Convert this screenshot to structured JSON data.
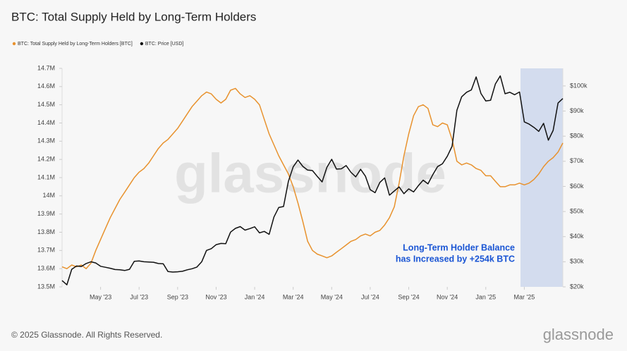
{
  "chart_data": {
    "type": "line",
    "title": "BTC: Total Supply Held by Long-Term Holders",
    "categories": [
      null,
      null,
      null,
      null,
      null,
      null,
      null,
      null,
      "May '23",
      null,
      null,
      null,
      null,
      null,
      null,
      null,
      "Jul '23",
      null,
      null,
      null,
      null,
      null,
      null,
      null,
      "Sep '23",
      null,
      null,
      null,
      null,
      null,
      null,
      null,
      "Nov '23",
      null,
      null,
      null,
      null,
      null,
      null,
      null,
      "Jan '24",
      null,
      null,
      null,
      null,
      null,
      null,
      null,
      "Mar '24",
      null,
      null,
      null,
      null,
      null,
      null,
      null,
      "May '24",
      null,
      null,
      null,
      null,
      null,
      null,
      null,
      "Jul '24",
      null,
      null,
      null,
      null,
      null,
      null,
      null,
      "Sep '24",
      null,
      null,
      null,
      null,
      null,
      null,
      null,
      "Nov '24",
      null,
      null,
      null,
      null,
      null,
      null,
      null,
      "Jan '25",
      null,
      null,
      null,
      null,
      null,
      null,
      null,
      "Mar '25",
      null,
      null,
      null,
      null,
      null,
      null,
      null,
      null
    ],
    "series": [
      {
        "name": "BTC: Total Supply Held by Long-Term Holders [BTC]",
        "color": "#e8922e",
        "axis": "y",
        "values": [
          13610000,
          13600000,
          13620000,
          13610000,
          13620000,
          13600000,
          13630000,
          13700000,
          13760000,
          13820000,
          13880000,
          13930000,
          13980000,
          14020000,
          14060000,
          14100000,
          14130000,
          14150000,
          14180000,
          14220000,
          14260000,
          14290000,
          14310000,
          14340000,
          14370000,
          14410000,
          14450000,
          14490000,
          14520000,
          14550000,
          14570000,
          14560000,
          14530000,
          14510000,
          14530000,
          14580000,
          14590000,
          14560000,
          14540000,
          14550000,
          14530000,
          14500000,
          14420000,
          14340000,
          14280000,
          14220000,
          14170000,
          14120000,
          14050000,
          13960000,
          13860000,
          13750000,
          13700000,
          13680000,
          13670000,
          13660000,
          13670000,
          13690000,
          13710000,
          13730000,
          13750000,
          13760000,
          13780000,
          13790000,
          13780000,
          13800000,
          13810000,
          13840000,
          13880000,
          13940000,
          14070000,
          14220000,
          14340000,
          14440000,
          14490000,
          14500000,
          14480000,
          14390000,
          14380000,
          14400000,
          14390000,
          14310000,
          14190000,
          14170000,
          14180000,
          14170000,
          14150000,
          14140000,
          14110000,
          14110000,
          14080000,
          14050000,
          14050000,
          14060000,
          14060000,
          14070000,
          14060000,
          14070000,
          14090000,
          14120000,
          14160000,
          14190000,
          14210000,
          14240000,
          14290000
        ]
      },
      {
        "name": "BTC: Price [USD]",
        "color": "#111111",
        "axis": "y2",
        "values": [
          22500,
          20800,
          27000,
          28300,
          28100,
          29300,
          30000,
          29500,
          28200,
          27800,
          27400,
          26900,
          26800,
          26500,
          27000,
          30200,
          30300,
          30000,
          29900,
          29800,
          29300,
          29200,
          26100,
          25900,
          26000,
          26200,
          26800,
          27200,
          27900,
          30000,
          34500,
          35200,
          36800,
          37300,
          37200,
          41800,
          43300,
          44000,
          42600,
          43200,
          43900,
          41500,
          42100,
          40900,
          47800,
          51600,
          52000,
          62000,
          67800,
          70500,
          68000,
          66500,
          66300,
          64000,
          61800,
          67600,
          70800,
          66900,
          67000,
          68300,
          65600,
          63800,
          66800,
          64100,
          58700,
          57500,
          61600,
          63400,
          56500,
          58200,
          59800,
          57100,
          59000,
          57800,
          60300,
          62500,
          61000,
          64700,
          67900,
          69000,
          72000,
          76000,
          90300,
          95700,
          97500,
          98400,
          103600,
          97000,
          94000,
          94300,
          100800,
          104000,
          96900,
          97500,
          96500,
          97600,
          85700,
          84800,
          83500,
          81900,
          85100,
          78400,
          82300,
          93200,
          95000
        ]
      }
    ],
    "ylim": [
      13500000,
      14700000
    ],
    "yticks": [
      {
        "value": 13500000,
        "label": "13.5M"
      },
      {
        "value": 13600000,
        "label": "13.6M"
      },
      {
        "value": 13700000,
        "label": "13.7M"
      },
      {
        "value": 13800000,
        "label": "13.8M"
      },
      {
        "value": 13900000,
        "label": "13.9M"
      },
      {
        "value": 14000000,
        "label": "14M"
      },
      {
        "value": 14100000,
        "label": "14.1M"
      },
      {
        "value": 14200000,
        "label": "14.2M"
      },
      {
        "value": 14300000,
        "label": "14.3M"
      },
      {
        "value": 14400000,
        "label": "14.4M"
      },
      {
        "value": 14500000,
        "label": "14.5M"
      },
      {
        "value": 14600000,
        "label": "14.6M"
      },
      {
        "value": 14700000,
        "label": "14.7M"
      }
    ],
    "y2lim": [
      20000,
      107000
    ],
    "y2ticks": [
      {
        "value": 20000,
        "label": "$20k"
      },
      {
        "value": 30000,
        "label": "$30k"
      },
      {
        "value": 40000,
        "label": "$40k"
      },
      {
        "value": 50000,
        "label": "$50k"
      },
      {
        "value": 60000,
        "label": "$60k"
      },
      {
        "value": 70000,
        "label": "$70k"
      },
      {
        "value": 80000,
        "label": "$80k"
      },
      {
        "value": 90000,
        "label": "$90k"
      },
      {
        "value": 100000,
        "label": "$100k"
      }
    ],
    "annotations": [
      "Long-Term Holder Balance",
      "has Increased by +254k BTC"
    ],
    "watermark": "glassnode"
  },
  "footer": {
    "copyright": "© 2025 Glassnode. All Rights Reserved.",
    "logo": "glassnode"
  }
}
